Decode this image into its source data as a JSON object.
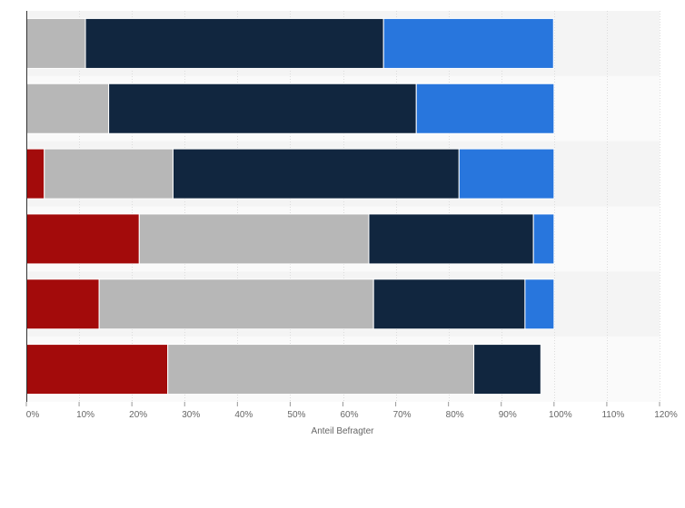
{
  "chart_data": {
    "type": "bar",
    "orientation": "horizontal",
    "stacked": true,
    "xlabel": "Anteil Befragter",
    "xlim": [
      0,
      120
    ],
    "x_ticks": [
      "0%",
      "10%",
      "20%",
      "30%",
      "40%",
      "50%",
      "60%",
      "70%",
      "80%",
      "90%",
      "100%",
      "110%",
      "120%"
    ],
    "x_tick_values": [
      0,
      10,
      20,
      30,
      40,
      50,
      60,
      70,
      80,
      90,
      100,
      110,
      120
    ],
    "grid": "vertical",
    "legend": "none",
    "series": [
      {
        "color": "#a30b0b",
        "values": [
          0,
          0,
          3.4,
          21.4,
          13.8,
          26.8
        ]
      },
      {
        "color": "#b7b7b7",
        "values": [
          11.2,
          15.6,
          24.4,
          43.5,
          52.0,
          58.0
        ]
      },
      {
        "color": "#11263f",
        "values": [
          56.5,
          58.3,
          54.2,
          31.2,
          28.7,
          12.7
        ]
      },
      {
        "color": "#2876dd",
        "values": [
          32.2,
          26.1,
          18.0,
          3.9,
          5.5,
          0
        ]
      }
    ]
  }
}
